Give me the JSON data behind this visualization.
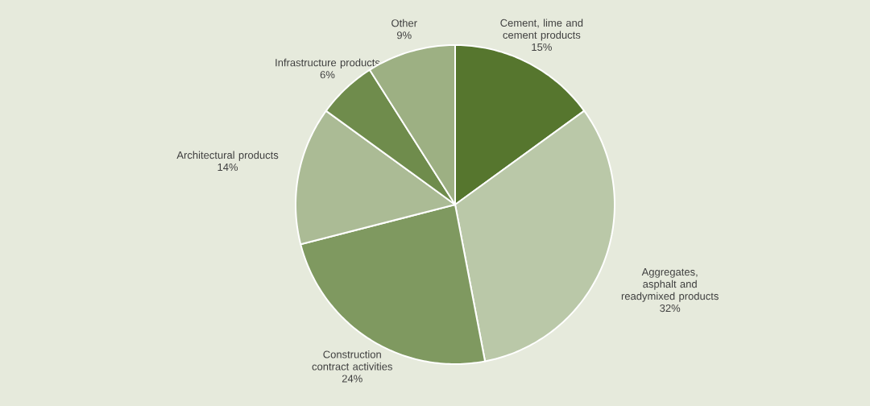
{
  "chart_data": {
    "type": "pie",
    "categories": [
      "Cement, lime and cement products",
      "Aggregates, asphalt and readymixed products",
      "Construction contract activities",
      "Architectural products",
      "Infrastructure products",
      "Other"
    ],
    "values": [
      15,
      32,
      24,
      14,
      6,
      9
    ],
    "value_labels": [
      "15%",
      "32%",
      "24%",
      "14%",
      "6%",
      "9%"
    ],
    "colors": [
      "#56762e",
      "#bac8a8",
      "#7f9960",
      "#abbb95",
      "#6f8c4c",
      "#9db083"
    ]
  }
}
